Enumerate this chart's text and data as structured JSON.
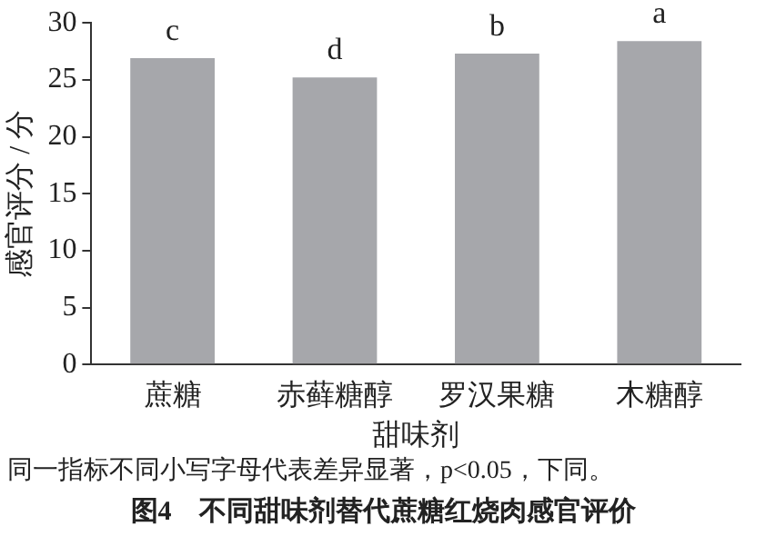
{
  "chart_data": {
    "type": "bar",
    "title": "图4　不同甜味剂替代蔗糖红烧肉感官评价",
    "xlabel": "甜味剂",
    "ylabel": "感官评分 / 分",
    "categories": [
      "蔗糖",
      "赤藓糖醇",
      "罗汉果糖",
      "木糖醇"
    ],
    "values": [
      26.9,
      25.2,
      27.3,
      28.4
    ],
    "color": "#a6a7ab",
    "ylim": [
      0,
      30
    ],
    "yticks": [
      0,
      5,
      10,
      15,
      20,
      25,
      30
    ],
    "grid": false,
    "legend": false,
    "annotations": [
      {
        "text": "c",
        "x": "蔗糖",
        "y": 26.9
      },
      {
        "text": "d",
        "x": "赤藓糖醇",
        "y": 25.2
      },
      {
        "text": "b",
        "x": "罗汉果糖",
        "y": 27.3
      },
      {
        "text": "a",
        "x": "木糖醇",
        "y": 28.4
      },
      "同一指标不同小写字母代表差异显著，p<0.05，下同。"
    ]
  }
}
